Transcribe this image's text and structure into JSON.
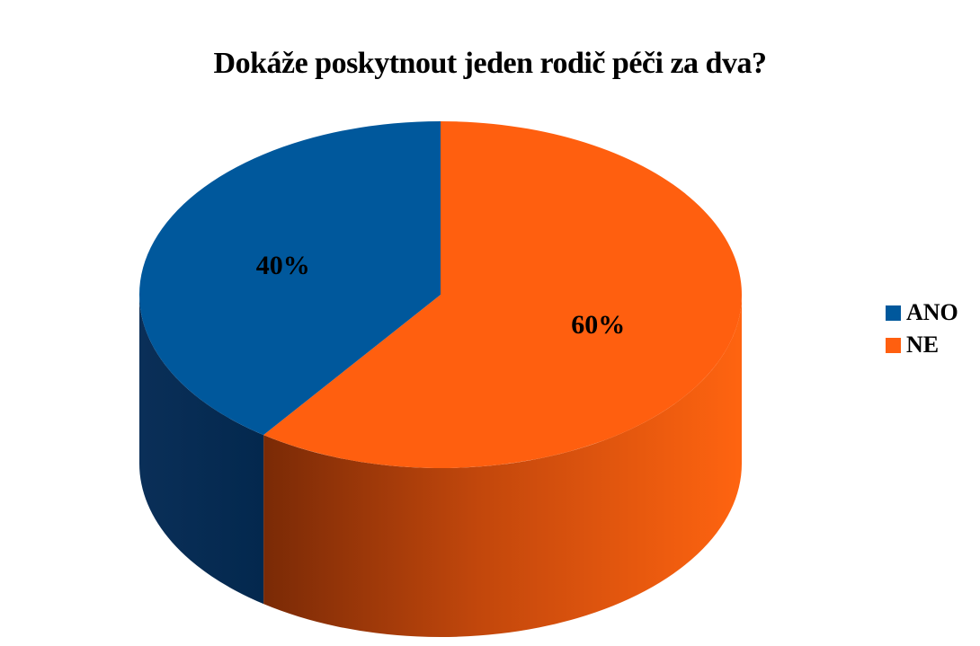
{
  "chart_data": {
    "type": "pie",
    "title": "Dokáže poskytnout jeden rodič péči za dva?",
    "categories": [
      "ANO",
      "NE"
    ],
    "values": [
      40,
      60
    ],
    "data_labels": [
      "40%",
      "60%"
    ],
    "colors": [
      "#00589c",
      "#ff5f0f"
    ],
    "side_colors": [
      "#0a2f58",
      "#a23b0a"
    ],
    "legend": {
      "position": "right",
      "entries": [
        "ANO",
        "NE"
      ]
    },
    "style": "3d"
  }
}
